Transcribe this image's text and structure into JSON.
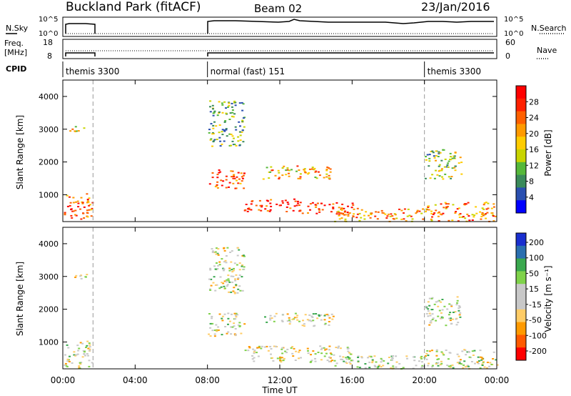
{
  "header": {
    "title": "Buckland Park (fitACF)",
    "beam": "Beam 02",
    "date": "23/Jan/2016"
  },
  "panels": {
    "nsky_label": "N.Sky",
    "nsky_ticks": [
      "10^5",
      "10^0"
    ],
    "nsearch_label": "N.Search",
    "nsearch_ticks": [
      "10^5",
      "10^0"
    ],
    "freq_label": "Freq.",
    "freq_unit": "[MHz]",
    "freq_ticks": [
      "18",
      "8"
    ],
    "nave_label": "Nave",
    "nave_ticks": [
      "60",
      "0"
    ],
    "cpid_label": "CPID",
    "cpid_segments": [
      {
        "start_hour": 0.0,
        "end_hour": 8.0,
        "label": "themis 3300"
      },
      {
        "start_hour": 8.0,
        "end_hour": 20.0,
        "label": "normal (fast) 151"
      },
      {
        "start_hour": 20.0,
        "end_hour": 24.0,
        "label": "themis 3300"
      }
    ]
  },
  "chart_data": [
    {
      "type": "heatmap",
      "name": "power",
      "ylabel": "Slant Range [km]",
      "xlabel": "",
      "xlim_hours": [
        0,
        24
      ],
      "ylim": [
        180,
        4500
      ],
      "yticks": [
        "1000",
        "2000",
        "3000",
        "4000"
      ],
      "colorbar_label": "Power [dB]",
      "colorbar_ticks": [
        "4",
        "8",
        "12",
        "16",
        "20",
        "24",
        "28"
      ],
      "colors": [
        "#0000ff",
        "#2a4fb0",
        "#3a8a5a",
        "#55b83a",
        "#c8d400",
        "#ffcc00",
        "#ff9a00",
        "#ff6000",
        "#ff2000",
        "#ff0000"
      ],
      "echo_regions": [
        {
          "t0": 0.05,
          "t1": 1.6,
          "r0": 200,
          "r1": 1050,
          "level": 0.75
        },
        {
          "t0": 0.2,
          "t1": 1.5,
          "r0": 2950,
          "r1": 3100,
          "level": 0.5
        },
        {
          "t0": 8.0,
          "t1": 10.0,
          "r0": 1200,
          "r1": 1800,
          "level": 0.8
        },
        {
          "t0": 10.0,
          "t1": 13.0,
          "r0": 500,
          "r1": 900,
          "level": 0.9
        },
        {
          "t0": 13.0,
          "t1": 16.0,
          "r0": 400,
          "r1": 800,
          "level": 0.85
        },
        {
          "t0": 11.0,
          "t1": 15.0,
          "r0": 1500,
          "r1": 1900,
          "level": 0.6
        },
        {
          "t0": 15.0,
          "t1": 20.0,
          "r0": 200,
          "r1": 600,
          "level": 0.65
        },
        {
          "t0": 20.0,
          "t1": 24.0,
          "r0": 200,
          "r1": 800,
          "level": 0.7
        },
        {
          "t0": 20.0,
          "t1": 22.0,
          "r0": 1500,
          "r1": 2400,
          "level": 0.4
        },
        {
          "t0": 8.0,
          "t1": 10.0,
          "r0": 2500,
          "r1": 3900,
          "level": 0.35
        }
      ]
    },
    {
      "type": "heatmap",
      "name": "velocity",
      "ylabel": "Slant Range [km]",
      "xlabel": "Time UT",
      "xlim_hours": [
        0,
        24
      ],
      "ylim": [
        180,
        4500
      ],
      "yticks": [
        "1000",
        "2000",
        "3000",
        "4000"
      ],
      "xticks": [
        "00:00",
        "04:00",
        "08:00",
        "12:00",
        "16:00",
        "20:00",
        "00:00"
      ],
      "colorbar_label": "Velocity [m s⁻¹]",
      "colorbar_ticks": [
        "200",
        "100",
        "50",
        "15",
        "-15",
        "-50",
        "-100",
        "-200"
      ],
      "colors": [
        "#ff0000",
        "#ff5a00",
        "#ff9a00",
        "#ffcc66",
        "#c8c8c8",
        "#c8c8c8",
        "#7fd24a",
        "#3aa84e",
        "#2a6fb0",
        "#1a2fcf"
      ],
      "echo_regions": [
        {
          "t0": 0.05,
          "t1": 1.6,
          "r0": 200,
          "r1": 1050,
          "level": 0.5
        },
        {
          "t0": 0.2,
          "t1": 1.5,
          "r0": 2950,
          "r1": 3100,
          "level": 0.5
        },
        {
          "t0": 8.0,
          "t1": 10.0,
          "r0": 1200,
          "r1": 1900,
          "level": 0.48
        },
        {
          "t0": 10.0,
          "t1": 16.0,
          "r0": 400,
          "r1": 900,
          "level": 0.45
        },
        {
          "t0": 11.0,
          "t1": 15.0,
          "r0": 1500,
          "r1": 1900,
          "level": 0.5
        },
        {
          "t0": 15.0,
          "t1": 20.0,
          "r0": 200,
          "r1": 600,
          "level": 0.55
        },
        {
          "t0": 20.0,
          "t1": 24.0,
          "r0": 200,
          "r1": 800,
          "level": 0.5
        },
        {
          "t0": 20.0,
          "t1": 22.0,
          "r0": 1500,
          "r1": 2400,
          "level": 0.5
        },
        {
          "t0": 8.0,
          "t1": 10.0,
          "r0": 2500,
          "r1": 3900,
          "level": 0.5
        }
      ]
    }
  ]
}
